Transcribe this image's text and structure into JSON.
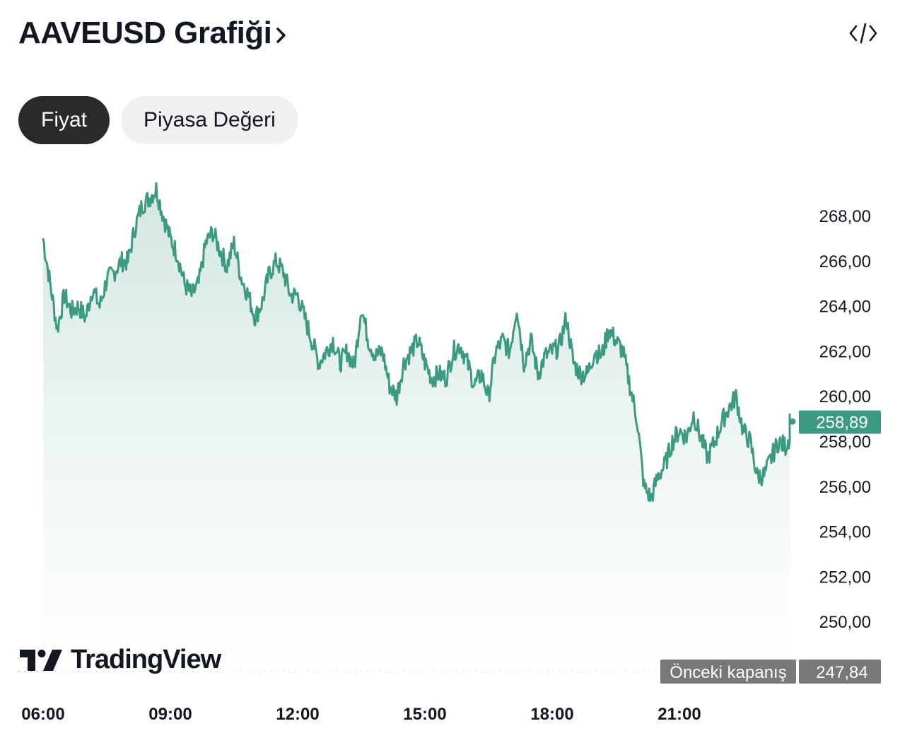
{
  "header": {
    "title": "AAVEUSD Grafiği"
  },
  "tabs": [
    {
      "label": "Fiyat",
      "active": true
    },
    {
      "label": "Piyasa Değeri",
      "active": false
    }
  ],
  "brand": {
    "name": "TradingView"
  },
  "colors": {
    "line": "#3d9a82",
    "fill_top": "#cfe5dd",
    "price_tag": "#3d9a82",
    "prev_close_tag": "#787878",
    "axis_text": "#131722"
  },
  "chart_data": {
    "type": "area",
    "x_axis": {
      "ticks": [
        "06:00",
        "09:00",
        "12:00",
        "15:00",
        "18:00",
        "21:00"
      ]
    },
    "y_axis": {
      "ticks": [
        "250,00",
        "252,00",
        "254,00",
        "256,00",
        "258,00",
        "260,00",
        "262,00",
        "264,00",
        "266,00",
        "268,00"
      ],
      "range": [
        248.0,
        269.5
      ]
    },
    "last_price": {
      "label": "258,89",
      "value": 258.89
    },
    "previous_close": {
      "label": "Önceki kapanış",
      "value_label": "247,84",
      "value": 247.84
    },
    "series": [
      {
        "x": [
          "06:00",
          "06:10",
          "06:20",
          "06:30",
          "06:40",
          "06:50",
          "07:00",
          "07:10",
          "07:20",
          "07:30",
          "07:40",
          "07:50",
          "08:00",
          "08:10",
          "08:20",
          "08:30",
          "08:40",
          "08:50",
          "09:00",
          "09:10",
          "09:20",
          "09:30",
          "09:40",
          "09:50",
          "10:00",
          "10:10",
          "10:20",
          "10:30",
          "10:40",
          "10:50",
          "11:00",
          "11:10",
          "11:20",
          "11:30",
          "11:40",
          "11:50",
          "12:00",
          "12:10",
          "12:20",
          "12:30",
          "12:40",
          "12:50",
          "13:00",
          "13:10",
          "13:20",
          "13:30",
          "13:40",
          "13:50",
          "14:00",
          "14:10",
          "14:20",
          "14:30",
          "14:40",
          "14:50",
          "15:00",
          "15:10",
          "15:20",
          "15:30",
          "15:40",
          "15:50",
          "16:00",
          "16:10",
          "16:20",
          "16:30",
          "16:40",
          "16:50",
          "17:00",
          "17:10",
          "17:20",
          "17:30",
          "17:40",
          "17:50",
          "18:00",
          "18:10",
          "18:20",
          "18:30",
          "18:40",
          "18:50",
          "19:00",
          "19:10",
          "19:20",
          "19:30",
          "19:40",
          "19:50",
          "20:00",
          "20:10",
          "20:20",
          "20:30",
          "20:40",
          "20:50",
          "21:00",
          "21:10",
          "21:20",
          "21:30",
          "21:40",
          "21:50",
          "22:00",
          "22:10",
          "22:20",
          "22:30",
          "22:40",
          "22:50",
          "23:00",
          "23:10",
          "23:20",
          "23:30",
          "23:40",
          "23:50",
          "23:55",
          "23:57"
        ],
        "values": [
          267.0,
          265.0,
          263.0,
          264.5,
          263.8,
          264.0,
          263.5,
          264.8,
          264.0,
          265.2,
          265.5,
          266.0,
          266.0,
          267.5,
          268.5,
          268.8,
          269.2,
          268.0,
          267.0,
          266.3,
          265.0,
          264.5,
          265.0,
          266.8,
          267.3,
          266.5,
          265.8,
          266.8,
          265.3,
          264.5,
          263.5,
          264.2,
          265.5,
          266.0,
          265.5,
          264.5,
          264.5,
          263.5,
          262.5,
          261.5,
          262.0,
          262.5,
          261.5,
          262.0,
          261.3,
          264.0,
          262.5,
          261.8,
          262.0,
          260.5,
          260.0,
          261.5,
          262.0,
          262.5,
          261.5,
          260.8,
          261.0,
          260.8,
          262.0,
          262.3,
          261.5,
          260.5,
          261.0,
          260.0,
          262.0,
          262.5,
          262.0,
          264.0,
          261.5,
          262.5,
          261.0,
          261.8,
          262.0,
          262.2,
          263.5,
          261.5,
          261.0,
          261.0,
          262.0,
          261.8,
          263.0,
          262.5,
          262.0,
          260.5,
          259.0,
          256.0,
          255.5,
          256.5,
          257.0,
          258.0,
          258.5,
          258.2,
          259.2,
          258.2,
          257.3,
          258.0,
          258.9,
          259.5,
          260.0,
          258.5,
          258.0,
          256.5,
          256.5,
          257.3,
          258.0,
          257.8,
          258.5,
          258.9,
          258.5,
          258.9
        ]
      }
    ]
  }
}
